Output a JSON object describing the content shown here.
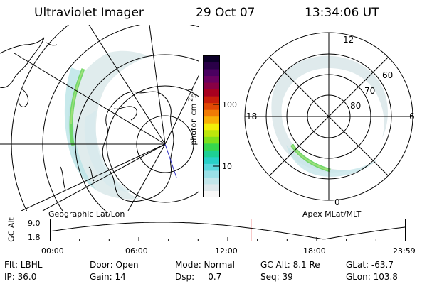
{
  "header": {
    "instrument": "Ultraviolet Imager",
    "date": "29 Oct 07",
    "time": "13:34:06 UT"
  },
  "colorbar": {
    "unit_label": "photon cm",
    "unit_sup1": "-2",
    "unit_mid": "s",
    "unit_sup2": "-1",
    "tick_labels": [
      "100",
      "10"
    ],
    "colors": [
      "#f8f8f8",
      "#dfe9ec",
      "#c3e6ea",
      "#9ae0e6",
      "#5ad7dd",
      "#28d0c8",
      "#1ecf94",
      "#37d64d",
      "#7fe01b",
      "#bde60c",
      "#f2ee08",
      "#f8b006",
      "#f07b05",
      "#e04804",
      "#c81e0a",
      "#a8001f",
      "#880045",
      "#6a0060",
      "#4a0060",
      "#2a0048",
      "#0c0028"
    ]
  },
  "left_panel": {
    "caption": "Geographic Lat/Lon"
  },
  "right_panel": {
    "caption": "Apex MLat/MLT",
    "mlt_labels": [
      "12",
      "18",
      "6",
      "0"
    ],
    "mlat_labels": [
      "60",
      "70",
      "80"
    ]
  },
  "altitude_plot": {
    "ylabel": "GC Alt",
    "yticks": [
      "9.0",
      "1.8"
    ],
    "xticks": [
      "00:00",
      "06:00",
      "12:00",
      "18:00",
      "23:59"
    ],
    "marker_time_hours": 13.57,
    "marker_color": "#e00000"
  },
  "info": {
    "row1": [
      {
        "label": "Flt: LBHL"
      },
      {
        "label": "Door: Open"
      },
      {
        "label": "Mode: Normal"
      },
      {
        "label": "GC Alt: 8.1 Re"
      },
      {
        "label": "GLat: -63.7"
      }
    ],
    "row2": [
      {
        "label": "IP: 36.0"
      },
      {
        "label": "Gain: 14"
      },
      {
        "label": "Dsp:     0.7"
      },
      {
        "label": "Seq: 39"
      },
      {
        "label": "GLon: 103.8"
      }
    ]
  }
}
